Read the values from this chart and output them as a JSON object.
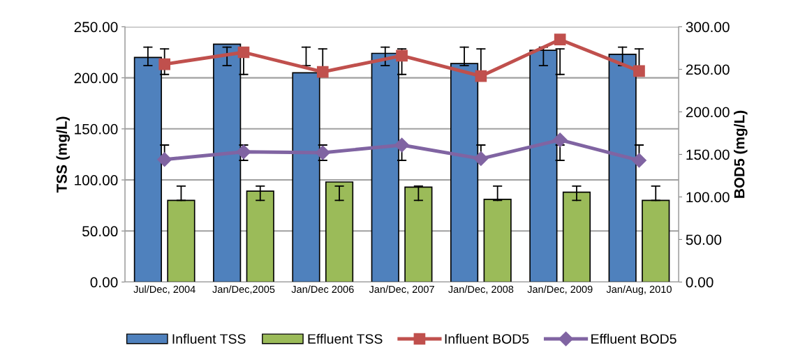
{
  "chart_data": {
    "type": "bar",
    "ylabel": "TSS (mg/L)",
    "y2label": "BOD5 (mg/L)",
    "categories": [
      "Jul/Dec, 2004",
      "Jan/Dec,2005",
      "Jan/Dec 2006",
      "Jan/Dec, 2007",
      "Jan/Dec, 2008",
      "Jan/Dec, 2009",
      "Jan/Aug, 2010"
    ],
    "series": [
      {
        "name": "Influent TSS",
        "color": "#4f81bd",
        "values": [
          220,
          233,
          205,
          224,
          214,
          227,
          223
        ],
        "errors": [
          [
            212,
            230
          ],
          [
            212,
            230
          ],
          [
            212,
            230
          ],
          [
            212,
            230
          ],
          [
            212,
            230
          ],
          [
            212,
            230
          ],
          [
            212,
            230
          ]
        ]
      },
      {
        "name": "Effluent TSS",
        "color": "#9bbb59",
        "values": [
          80,
          89,
          98,
          93,
          81,
          88,
          80
        ],
        "errors": [
          [
            80,
            94
          ],
          [
            80,
            94
          ],
          [
            80,
            94
          ],
          [
            80,
            94
          ],
          [
            80,
            94
          ],
          [
            80,
            94
          ],
          [
            80,
            94
          ]
        ]
      },
      {
        "name": "Influent BOD5",
        "type": "line",
        "axis": "y2",
        "marker": "square",
        "color": "#c0504d",
        "values": [
          256,
          270,
          247,
          266,
          242,
          285,
          248
        ],
        "errors": [
          [
            244,
            274
          ],
          [
            244,
            270
          ],
          [
            247,
            274
          ],
          [
            244,
            274
          ],
          [
            242,
            274
          ],
          [
            244,
            274
          ],
          [
            248,
            274
          ]
        ]
      },
      {
        "name": "Effluent BOD5",
        "type": "line",
        "axis": "y2",
        "marker": "diamond",
        "color": "#8064a2",
        "values": [
          144,
          153,
          152,
          161,
          145,
          167,
          143
        ],
        "errors": [
          [
            143,
            161
          ],
          [
            143,
            161
          ],
          [
            143,
            161
          ],
          [
            143,
            161
          ],
          [
            145,
            161
          ],
          [
            143,
            161
          ],
          [
            143,
            161
          ]
        ]
      }
    ],
    "ylim": [
      0,
      250
    ],
    "yticks": [
      {
        "value": 0,
        "label": "0.00"
      },
      {
        "value": 50,
        "label": "50.00"
      },
      {
        "value": 100,
        "label": "100.00"
      },
      {
        "value": 150,
        "label": "150.00"
      },
      {
        "value": 200,
        "label": "200.00"
      },
      {
        "value": 250,
        "label": "250.00"
      }
    ],
    "y2lim": [
      0,
      300
    ],
    "y2ticks": [
      {
        "value": 0,
        "label": "0.00"
      },
      {
        "value": 50,
        "label": "50.00"
      },
      {
        "value": 100,
        "label": "100.00"
      },
      {
        "value": 150,
        "label": "150.00"
      },
      {
        "value": 200,
        "label": "200.00"
      },
      {
        "value": 250,
        "label": "250.00"
      },
      {
        "value": 300,
        "label": "300.00"
      }
    ],
    "grid": "y",
    "legend": "bottom",
    "line_style": "solid"
  }
}
